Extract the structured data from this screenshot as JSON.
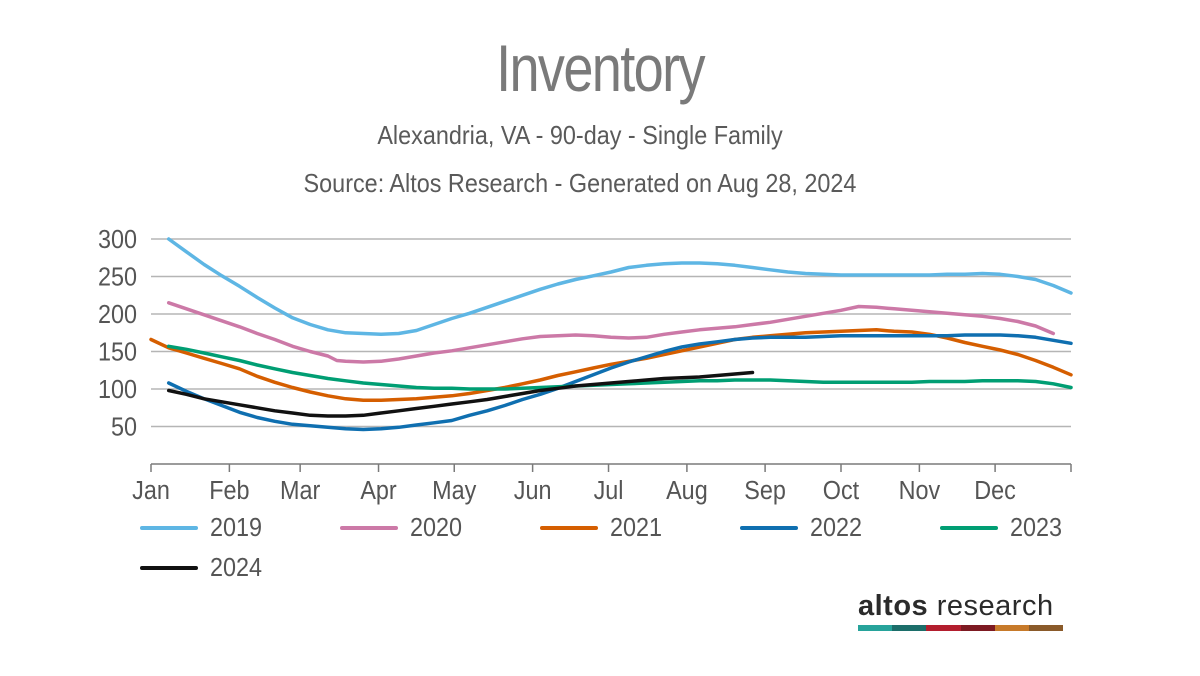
{
  "chart_data": {
    "type": "line",
    "title": "Inventory",
    "subtitle": "Alexandria, VA - 90-day - Single Family",
    "source": "Source: Altos Research - Generated on Aug 28, 2024",
    "xlabel": "",
    "ylabel": "",
    "x_range": [
      1,
      53
    ],
    "ylim": [
      0,
      300
    ],
    "y_ticks": [
      50,
      100,
      150,
      200,
      250,
      300
    ],
    "x_ticks": [
      {
        "label": "Jan",
        "week": 1
      },
      {
        "label": "Feb",
        "week": 5.43
      },
      {
        "label": "Mar",
        "week": 9.43
      },
      {
        "label": "Apr",
        "week": 13.86
      },
      {
        "label": "May",
        "week": 18.14
      },
      {
        "label": "Jun",
        "week": 22.57
      },
      {
        "label": "Jul",
        "week": 26.86
      },
      {
        "label": "Aug",
        "week": 31.29
      },
      {
        "label": "Sep",
        "week": 35.71
      },
      {
        "label": "Oct",
        "week": 40
      },
      {
        "label": "Nov",
        "week": 44.43
      },
      {
        "label": "Dec",
        "week": 48.71
      }
    ],
    "grid": true,
    "legend_position": "bottom",
    "series": [
      {
        "name": "2019",
        "color": "#5eb6e4",
        "points": [
          [
            2,
            300
          ],
          [
            3,
            283
          ],
          [
            4,
            266
          ],
          [
            5,
            251
          ],
          [
            6,
            237
          ],
          [
            7,
            222
          ],
          [
            8,
            208
          ],
          [
            9,
            195
          ],
          [
            10,
            186
          ],
          [
            11,
            179
          ],
          [
            12,
            175
          ],
          [
            13,
            174
          ],
          [
            14,
            173
          ],
          [
            15,
            174
          ],
          [
            16,
            178
          ],
          [
            17,
            186
          ],
          [
            18,
            194
          ],
          [
            19,
            201
          ],
          [
            20,
            209
          ],
          [
            21,
            217
          ],
          [
            22,
            225
          ],
          [
            23,
            233
          ],
          [
            24,
            240
          ],
          [
            25,
            246
          ],
          [
            26,
            251
          ],
          [
            27,
            256
          ],
          [
            28,
            262
          ],
          [
            29,
            265
          ],
          [
            30,
            267
          ],
          [
            31,
            268
          ],
          [
            32,
            268
          ],
          [
            33,
            267
          ],
          [
            34,
            265
          ],
          [
            35,
            262
          ],
          [
            36,
            259
          ],
          [
            37,
            256
          ],
          [
            38,
            254
          ],
          [
            39,
            253
          ],
          [
            40,
            252
          ],
          [
            41,
            252
          ],
          [
            42,
            252
          ],
          [
            43,
            252
          ],
          [
            44,
            252
          ],
          [
            45,
            252
          ],
          [
            46,
            253
          ],
          [
            47,
            253
          ],
          [
            48,
            254
          ],
          [
            49,
            253
          ],
          [
            50,
            250
          ],
          [
            51,
            246
          ],
          [
            52,
            238
          ],
          [
            53,
            228
          ]
        ]
      },
      {
        "name": "2020",
        "color": "#cc79a7",
        "points": [
          [
            2,
            215
          ],
          [
            3,
            207
          ],
          [
            4,
            199
          ],
          [
            5,
            191
          ],
          [
            6,
            183
          ],
          [
            7,
            174
          ],
          [
            8,
            166
          ],
          [
            9,
            157
          ],
          [
            10,
            150
          ],
          [
            11,
            144
          ],
          [
            11.5,
            138
          ],
          [
            12,
            137
          ],
          [
            13,
            136
          ],
          [
            14,
            137
          ],
          [
            15,
            140
          ],
          [
            16,
            144
          ],
          [
            17,
            148
          ],
          [
            18,
            151
          ],
          [
            19,
            155
          ],
          [
            20,
            159
          ],
          [
            21,
            163
          ],
          [
            22,
            167
          ],
          [
            23,
            170
          ],
          [
            24,
            171
          ],
          [
            25,
            172
          ],
          [
            26,
            171
          ],
          [
            27,
            169
          ],
          [
            28,
            168
          ],
          [
            29,
            169
          ],
          [
            30,
            173
          ],
          [
            31,
            176
          ],
          [
            32,
            179
          ],
          [
            33,
            181
          ],
          [
            34,
            183
          ],
          [
            35,
            186
          ],
          [
            36,
            189
          ],
          [
            37,
            193
          ],
          [
            38,
            197
          ],
          [
            39,
            201
          ],
          [
            40,
            205
          ],
          [
            41,
            210
          ],
          [
            42,
            209
          ],
          [
            43,
            207
          ],
          [
            44,
            205
          ],
          [
            45,
            203
          ],
          [
            46,
            201
          ],
          [
            47,
            199
          ],
          [
            48,
            197
          ],
          [
            49,
            194
          ],
          [
            50,
            190
          ],
          [
            51,
            184
          ],
          [
            52,
            174
          ]
        ]
      },
      {
        "name": "2021",
        "color": "#d55e00",
        "points": [
          [
            1,
            166
          ],
          [
            2,
            155
          ],
          [
            3,
            148
          ],
          [
            4,
            141
          ],
          [
            5,
            134
          ],
          [
            6,
            127
          ],
          [
            7,
            117
          ],
          [
            8,
            109
          ],
          [
            9,
            102
          ],
          [
            10,
            96
          ],
          [
            11,
            91
          ],
          [
            12,
            87
          ],
          [
            13,
            85
          ],
          [
            14,
            85
          ],
          [
            15,
            86
          ],
          [
            16,
            87
          ],
          [
            17,
            89
          ],
          [
            18,
            91
          ],
          [
            19,
            94
          ],
          [
            20,
            98
          ],
          [
            21,
            102
          ],
          [
            22,
            107
          ],
          [
            23,
            112
          ],
          [
            24,
            118
          ],
          [
            25,
            123
          ],
          [
            26,
            128
          ],
          [
            27,
            133
          ],
          [
            28,
            137
          ],
          [
            29,
            141
          ],
          [
            30,
            146
          ],
          [
            31,
            151
          ],
          [
            32,
            156
          ],
          [
            33,
            161
          ],
          [
            34,
            166
          ],
          [
            35,
            169
          ],
          [
            36,
            171
          ],
          [
            37,
            173
          ],
          [
            38,
            175
          ],
          [
            39,
            176
          ],
          [
            40,
            177
          ],
          [
            41,
            178
          ],
          [
            42,
            179
          ],
          [
            43,
            177
          ],
          [
            44,
            176
          ],
          [
            45,
            173
          ],
          [
            46,
            168
          ],
          [
            47,
            162
          ],
          [
            48,
            157
          ],
          [
            49,
            152
          ],
          [
            50,
            146
          ],
          [
            51,
            138
          ],
          [
            52,
            129
          ],
          [
            53,
            119
          ]
        ]
      },
      {
        "name": "2022",
        "color": "#0f6fb0",
        "points": [
          [
            2,
            108
          ],
          [
            3,
            97
          ],
          [
            4,
            87
          ],
          [
            5,
            78
          ],
          [
            6,
            69
          ],
          [
            7,
            62
          ],
          [
            8,
            57
          ],
          [
            9,
            53
          ],
          [
            10,
            51
          ],
          [
            11,
            49
          ],
          [
            12,
            47
          ],
          [
            13,
            46
          ],
          [
            14,
            47
          ],
          [
            15,
            49
          ],
          [
            16,
            52
          ],
          [
            17,
            55
          ],
          [
            18,
            58
          ],
          [
            19,
            65
          ],
          [
            20,
            71
          ],
          [
            21,
            78
          ],
          [
            22,
            86
          ],
          [
            23,
            93
          ],
          [
            24,
            101
          ],
          [
            25,
            110
          ],
          [
            26,
            119
          ],
          [
            27,
            128
          ],
          [
            28,
            136
          ],
          [
            29,
            143
          ],
          [
            30,
            150
          ],
          [
            31,
            156
          ],
          [
            32,
            160
          ],
          [
            33,
            163
          ],
          [
            34,
            166
          ],
          [
            35,
            168
          ],
          [
            36,
            169
          ],
          [
            37,
            169
          ],
          [
            38,
            169
          ],
          [
            39,
            170
          ],
          [
            40,
            171
          ],
          [
            41,
            171
          ],
          [
            42,
            171
          ],
          [
            43,
            171
          ],
          [
            44,
            171
          ],
          [
            45,
            171
          ],
          [
            46,
            171
          ],
          [
            47,
            172
          ],
          [
            48,
            172
          ],
          [
            49,
            172
          ],
          [
            50,
            171
          ],
          [
            51,
            169
          ],
          [
            52,
            165
          ],
          [
            53,
            161
          ]
        ]
      },
      {
        "name": "2023",
        "color": "#009e73",
        "points": [
          [
            2,
            157
          ],
          [
            3,
            153
          ],
          [
            4,
            148
          ],
          [
            5,
            143
          ],
          [
            6,
            138
          ],
          [
            7,
            132
          ],
          [
            8,
            127
          ],
          [
            9,
            122
          ],
          [
            10,
            118
          ],
          [
            11,
            114
          ],
          [
            12,
            111
          ],
          [
            13,
            108
          ],
          [
            14,
            106
          ],
          [
            15,
            104
          ],
          [
            16,
            102
          ],
          [
            17,
            101
          ],
          [
            18,
            101
          ],
          [
            19,
            100
          ],
          [
            20,
            100
          ],
          [
            21,
            100
          ],
          [
            22,
            101
          ],
          [
            23,
            102
          ],
          [
            24,
            103
          ],
          [
            25,
            104
          ],
          [
            26,
            105
          ],
          [
            27,
            106
          ],
          [
            28,
            107
          ],
          [
            29,
            108
          ],
          [
            30,
            109
          ],
          [
            31,
            110
          ],
          [
            32,
            111
          ],
          [
            33,
            111
          ],
          [
            34,
            112
          ],
          [
            35,
            112
          ],
          [
            36,
            112
          ],
          [
            37,
            111
          ],
          [
            38,
            110
          ],
          [
            39,
            109
          ],
          [
            40,
            109
          ],
          [
            41,
            109
          ],
          [
            42,
            109
          ],
          [
            43,
            109
          ],
          [
            44,
            109
          ],
          [
            45,
            110
          ],
          [
            46,
            110
          ],
          [
            47,
            110
          ],
          [
            48,
            111
          ],
          [
            49,
            111
          ],
          [
            50,
            111
          ],
          [
            51,
            110
          ],
          [
            52,
            107
          ],
          [
            53,
            102
          ]
        ]
      },
      {
        "name": "2024",
        "color": "#111111",
        "points": [
          [
            2,
            98
          ],
          [
            3,
            93
          ],
          [
            4,
            87
          ],
          [
            5,
            83
          ],
          [
            6,
            79
          ],
          [
            7,
            75
          ],
          [
            8,
            71
          ],
          [
            9,
            68
          ],
          [
            10,
            65
          ],
          [
            11,
            64
          ],
          [
            12,
            64
          ],
          [
            13,
            65
          ],
          [
            14,
            68
          ],
          [
            15,
            71
          ],
          [
            16,
            74
          ],
          [
            17,
            77
          ],
          [
            18,
            80
          ],
          [
            19,
            83
          ],
          [
            20,
            86
          ],
          [
            21,
            90
          ],
          [
            22,
            94
          ],
          [
            23,
            98
          ],
          [
            24,
            101
          ],
          [
            25,
            104
          ],
          [
            26,
            106
          ],
          [
            27,
            108
          ],
          [
            28,
            110
          ],
          [
            29,
            112
          ],
          [
            30,
            114
          ],
          [
            31,
            115
          ],
          [
            32,
            116
          ],
          [
            33,
            118
          ],
          [
            34,
            120
          ],
          [
            35,
            122
          ]
        ]
      }
    ]
  },
  "brand": {
    "name_bold": "altos",
    "name_light": " research",
    "bar_colors": [
      "#27a39b",
      "#1c6e6a",
      "#b31e2e",
      "#7d1a22",
      "#c77a2a",
      "#8a5a2a"
    ]
  }
}
